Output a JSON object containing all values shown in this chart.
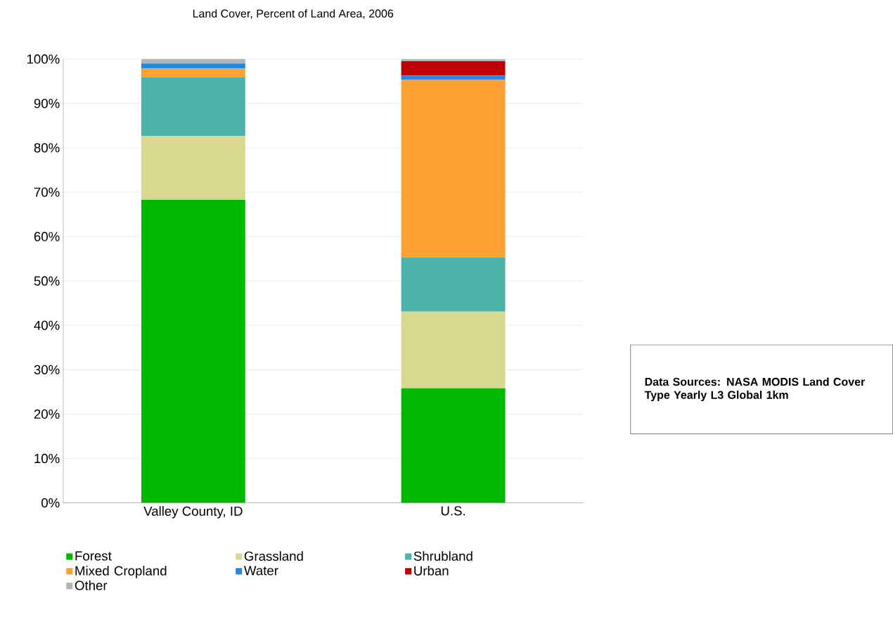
{
  "chart_data": {
    "type": "bar",
    "stacked": true,
    "title": "Land Cover, Percent of Land Area, 2006",
    "categories": [
      "Valley County, ID",
      "U.S."
    ],
    "series": [
      {
        "name": "Forest",
        "color": "#00b800",
        "values": [
          68.3,
          25.8
        ]
      },
      {
        "name": "Grassland",
        "color": "#d8d890",
        "values": [
          14.4,
          17.3
        ]
      },
      {
        "name": "Shrubland",
        "color": "#4db3a8",
        "values": [
          13.2,
          12.2
        ]
      },
      {
        "name": "Mixed Cropland",
        "color": "#ffa033",
        "values": [
          2.0,
          40.0
        ]
      },
      {
        "name": "Water",
        "color": "#1e88e5",
        "values": [
          1.1,
          1.0
        ]
      },
      {
        "name": "Urban",
        "color": "#c00000",
        "values": [
          0,
          3.2
        ]
      },
      {
        "name": "Other",
        "color": "#b4b4b4",
        "values": [
          1.0,
          0.5
        ]
      }
    ],
    "ylim": [
      0,
      100
    ],
    "yticks": [
      {
        "value": 0,
        "label": "0%"
      },
      {
        "value": 10,
        "label": "10%"
      },
      {
        "value": 20,
        "label": "20%"
      },
      {
        "value": 30,
        "label": "30%"
      },
      {
        "value": 40,
        "label": "40%"
      },
      {
        "value": 50,
        "label": "50%"
      },
      {
        "value": 60,
        "label": "60%"
      },
      {
        "value": 70,
        "label": "70%"
      },
      {
        "value": 80,
        "label": "80%"
      },
      {
        "value": 90,
        "label": "90%"
      },
      {
        "value": 100,
        "label": "100%"
      }
    ],
    "grid": "y",
    "legend": "bottom",
    "annotations": [
      "Data Sources: NASA MODIS Land Cover Type Yearly L3 Global 1km"
    ]
  }
}
